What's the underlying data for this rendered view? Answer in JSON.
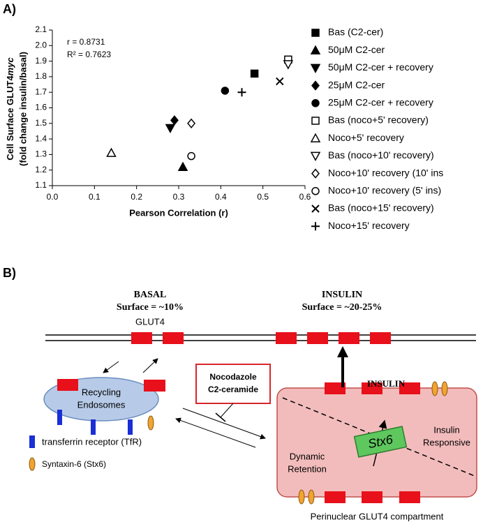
{
  "panel_labels": [
    "A)",
    "B)"
  ],
  "chart_data": {
    "type": "scatter",
    "ylabel": [
      "Cell Surface GLUT4",
      "myc",
      "(fold change insulin/basal)"
    ],
    "xlabel": "Pearson Correlation (r)",
    "annotations": [
      "r = 0.8731",
      "R² = 0.7623"
    ],
    "xlim": [
      0,
      0.6
    ],
    "xticks": [
      {
        "value": 0,
        "label": "0.0"
      },
      0.1,
      0.2,
      0.3,
      0.4,
      0.5,
      0.6
    ],
    "ylim": [
      1.1,
      2.1
    ],
    "yticks": [
      1.1,
      1.2,
      1.3,
      1.4,
      1.5,
      1.6,
      1.7,
      1.8,
      1.9,
      {
        "value": 2,
        "label": "2.0"
      },
      2.1
    ],
    "legend": "right",
    "series": [
      {
        "name": "Bas (C2-cer)",
        "marker": "square",
        "filled": true,
        "color": "#000000",
        "x": [
          0.48
        ],
        "values": [
          1.82
        ]
      },
      {
        "name": "50μM C2-cer",
        "marker": "triangle",
        "filled": true,
        "color": "#000000",
        "x": [
          0.31
        ],
        "values": [
          1.22
        ]
      },
      {
        "name": "50μM C2-cer + recovery",
        "marker": "triangle-down",
        "filled": true,
        "color": "#000000",
        "x": [
          0.28
        ],
        "values": [
          1.47
        ]
      },
      {
        "name": "25μM C2-cer",
        "marker": "diamond",
        "filled": true,
        "color": "#000000",
        "x": [
          0.29
        ],
        "values": [
          1.52
        ]
      },
      {
        "name": "25μM C2-cer + recovery",
        "marker": "circle",
        "filled": true,
        "color": "#000000",
        "x": [
          0.41
        ],
        "values": [
          1.71
        ]
      },
      {
        "name": "Bas (noco+5' recovery)",
        "marker": "square",
        "filled": false,
        "color": "#000000",
        "x": [
          0.56
        ],
        "values": [
          1.91
        ]
      },
      {
        "name": "Noco+5' recovery",
        "marker": "triangle",
        "filled": false,
        "color": "#000000",
        "x": [
          0.14
        ],
        "values": [
          1.31
        ]
      },
      {
        "name": "Bas (noco+10' recovery)",
        "marker": "triangle-down",
        "filled": false,
        "color": "#000000",
        "x": [
          0.56
        ],
        "values": [
          1.88
        ]
      },
      {
        "name": "Noco+10' recovery (10' ins",
        "marker": "diamond",
        "filled": false,
        "color": "#000000",
        "x": [
          0.33
        ],
        "values": [
          1.5
        ]
      },
      {
        "name": "Noco+10' recovery (5' ins)",
        "marker": "circle",
        "filled": false,
        "color": "#000000",
        "x": [
          0.33
        ],
        "values": [
          1.29
        ]
      },
      {
        "name": "Bas (noco+15' recovery)",
        "marker": "x",
        "filled": true,
        "color": "#000000",
        "x": [
          0.54
        ],
        "values": [
          1.77
        ]
      },
      {
        "name": "Noco+15' recovery",
        "marker": "plus",
        "filled": true,
        "color": "#000000",
        "x": [
          0.45
        ],
        "values": [
          1.7
        ]
      }
    ]
  },
  "diagram": {
    "basal": {
      "title": "BASAL",
      "surface": "Surface = ~10%",
      "glut4": "GLUT4"
    },
    "insulin": {
      "title": "INSULIN",
      "surface": "Surface = ~20-25%"
    },
    "inhibitors": [
      "Nocodazole",
      "C2-ceramide"
    ],
    "insulin_arrow": "INSULIN",
    "endosome": [
      "Recycling",
      "Endosomes"
    ],
    "compartment": {
      "left": [
        "Dynamic",
        "Retention"
      ],
      "center": "Stx6",
      "right": [
        "Insulin",
        "Responsive"
      ],
      "caption": "Perinuclear GLUT4 compartment"
    },
    "legend": [
      "transferrin receptor (TfR)",
      "Syntaxin-6 (Stx6)"
    ]
  }
}
